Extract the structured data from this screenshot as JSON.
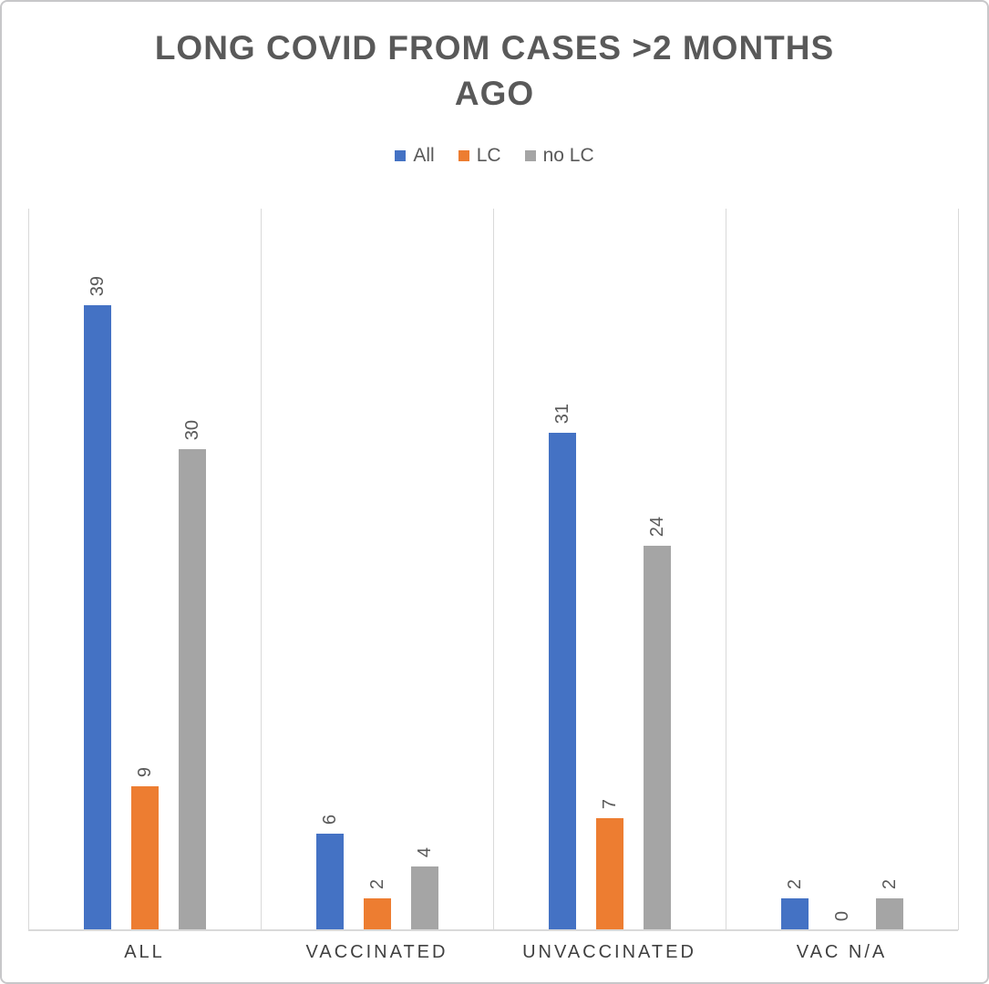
{
  "chart_data": {
    "type": "bar",
    "title": "LONG COVID FROM CASES >2 MONTHS AGO",
    "categories": [
      "ALL",
      "VACCINATED",
      "UNVACCINATED",
      "VAC N/A"
    ],
    "series": [
      {
        "name": "All",
        "color": "#4472C4",
        "values": [
          39,
          6,
          31,
          2
        ]
      },
      {
        "name": "LC",
        "color": "#ED7D31",
        "values": [
          9,
          2,
          7,
          0
        ]
      },
      {
        "name": "no LC",
        "color": "#A5A5A5",
        "values": [
          30,
          4,
          24,
          2
        ]
      }
    ],
    "xlabel": "",
    "ylabel": "",
    "ylim": [
      0,
      45
    ],
    "legend_position": "top",
    "grid": "vertical category separators only",
    "data_labels": "values rotated 90deg above bars",
    "colors": {
      "title_text": "#595959",
      "value_label_text": "#595959",
      "category_label_text": "#404040",
      "axis_and_grid_lines": "#D9D9D9",
      "outer_border": "#C7C7C9",
      "background": "#FFFFFF"
    }
  }
}
